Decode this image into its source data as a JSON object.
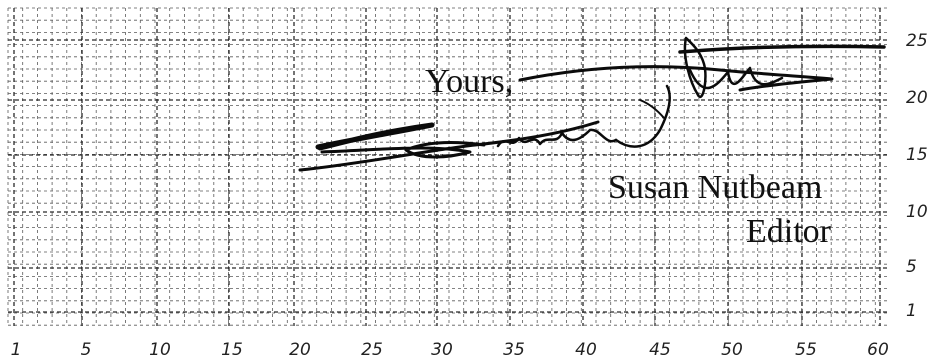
{
  "letter": {
    "closing": "Yours,",
    "signer_name": "Susan Nutbeam",
    "signer_title": "Editor"
  },
  "grid": {
    "x_ticks": [
      "1",
      "5",
      "10",
      "15",
      "20",
      "25",
      "30",
      "35",
      "40",
      "45",
      "50",
      "55",
      "60"
    ],
    "y_ticks": [
      "25",
      "20",
      "15",
      "10",
      "5",
      "1"
    ]
  },
  "colors": {
    "ink": "#111111",
    "grid": "#2a2a2a",
    "paper": "#ffffff"
  }
}
